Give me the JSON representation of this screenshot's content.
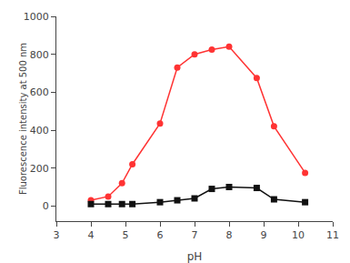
{
  "chart_data": {
    "type": "line",
    "x": [
      4.0,
      4.5,
      4.9,
      5.2,
      6.0,
      6.5,
      7.0,
      7.5,
      8.0,
      8.8,
      9.3,
      10.2
    ],
    "series": [
      {
        "color": "#ff3333",
        "marker": "circle",
        "values": [
          30,
          50,
          120,
          220,
          435,
          730,
          800,
          825,
          840,
          675,
          420,
          175
        ]
      },
      {
        "color": "#111111",
        "marker": "square",
        "values": [
          10,
          10,
          10,
          10,
          20,
          30,
          40,
          90,
          100,
          95,
          35,
          20
        ]
      }
    ],
    "xlabel": "pH",
    "ylabel": "Fluorescence intensity at 500 nm",
    "xlim": [
      3,
      11
    ],
    "ylim": [
      -80,
      1000
    ],
    "xticks": [
      3,
      4,
      5,
      6,
      7,
      8,
      9,
      10,
      11
    ],
    "yticks": [
      0,
      200,
      400,
      600,
      800,
      1000
    ],
    "grid": false
  }
}
